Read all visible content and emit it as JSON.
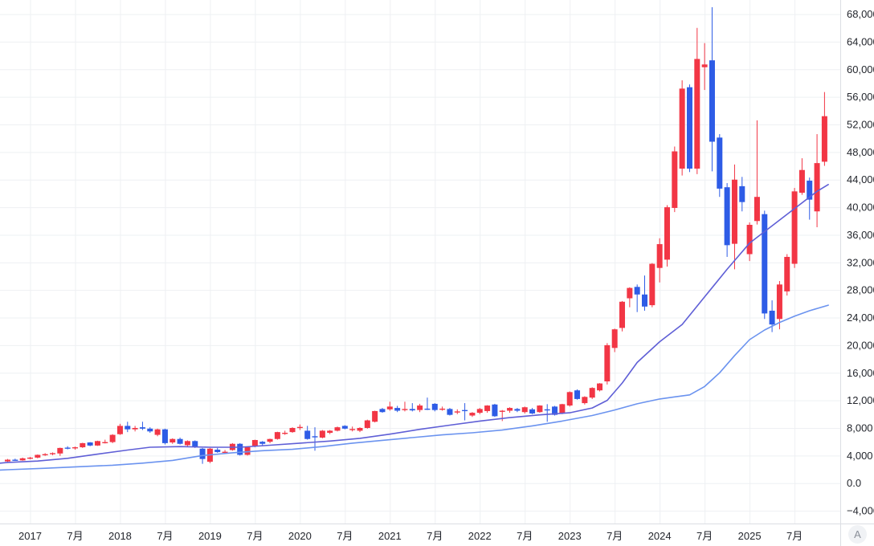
{
  "controls": {
    "axis_scale_button": "A"
  },
  "chart_data": {
    "type": "candlestick",
    "title": "",
    "frequency": "monthly",
    "start_month": "2016-10",
    "background": "#ffffff",
    "grid": true,
    "legend": "none",
    "up_color": "#f23645",
    "down_color": "#2e5ce6",
    "grid_color": "#eef0f3",
    "axis_border_color": "#dcdee3",
    "axis_text_color": "#23262d",
    "ylim": [
      -5855,
      70046
    ],
    "xlim_idx": [
      -1.02,
      111.1
    ],
    "y_ticks": [
      {
        "value": 68000,
        "label": "68,000"
      },
      {
        "value": 64000,
        "label": "64,000"
      },
      {
        "value": 60000,
        "label": "60,000"
      },
      {
        "value": 56000,
        "label": "56,000"
      },
      {
        "value": 52000,
        "label": "52,000"
      },
      {
        "value": 48000,
        "label": "48,000"
      },
      {
        "value": 44000,
        "label": "44,000"
      },
      {
        "value": 40000,
        "label": "40,000"
      },
      {
        "value": 36000,
        "label": "36,000"
      },
      {
        "value": 32000,
        "label": "32,000"
      },
      {
        "value": 28000,
        "label": "28,000"
      },
      {
        "value": 24000,
        "label": "24,000"
      },
      {
        "value": 20000,
        "label": "20,000"
      },
      {
        "value": 16000,
        "label": "16,000"
      },
      {
        "value": 12000,
        "label": "12,000"
      },
      {
        "value": 8000,
        "label": "8,000"
      },
      {
        "value": 4000,
        "label": "4,000"
      },
      {
        "value": 0,
        "label": "0.0"
      },
      {
        "value": -4000,
        "label": "−4,000"
      }
    ],
    "x_ticks": [
      {
        "idx": 3,
        "label": "2017"
      },
      {
        "idx": 9,
        "label": "7月"
      },
      {
        "idx": 15,
        "label": "2018"
      },
      {
        "idx": 21,
        "label": "7月"
      },
      {
        "idx": 27,
        "label": "2019"
      },
      {
        "idx": 33,
        "label": "7月"
      },
      {
        "idx": 39,
        "label": "2020"
      },
      {
        "idx": 45,
        "label": "7月"
      },
      {
        "idx": 51,
        "label": "2021"
      },
      {
        "idx": 57,
        "label": "7月"
      },
      {
        "idx": 63,
        "label": "2022"
      },
      {
        "idx": 69,
        "label": "7月"
      },
      {
        "idx": 75,
        "label": "2023"
      },
      {
        "idx": 81,
        "label": "7月"
      },
      {
        "idx": 87,
        "label": "2024"
      },
      {
        "idx": 93,
        "label": "7月"
      },
      {
        "idx": 99,
        "label": "2025"
      },
      {
        "idx": 105,
        "label": "7月"
      }
    ],
    "candles_ohlc": [
      [
        3150,
        3500,
        3050,
        3400
      ],
      [
        3400,
        3550,
        3250,
        3300
      ],
      [
        3300,
        3700,
        3250,
        3600
      ],
      [
        3600,
        3800,
        3450,
        3700
      ],
      [
        3700,
        4150,
        3600,
        4100
      ],
      [
        4100,
        4350,
        3950,
        4200
      ],
      [
        4200,
        4450,
        4050,
        4350
      ],
      [
        4300,
        5150,
        3950,
        5100
      ],
      [
        5150,
        5350,
        4900,
        5050
      ],
      [
        5050,
        5300,
        4850,
        5200
      ],
      [
        5200,
        5850,
        5100,
        5800
      ],
      [
        5900,
        5950,
        5350,
        5450
      ],
      [
        5450,
        6150,
        5400,
        6100
      ],
      [
        5850,
        6300,
        5750,
        5950
      ],
      [
        5950,
        7100,
        5800,
        7000
      ],
      [
        7100,
        8600,
        7000,
        8300
      ],
      [
        8300,
        8900,
        7400,
        7800
      ],
      [
        7800,
        8300,
        7500,
        8000
      ],
      [
        8100,
        8900,
        7700,
        7900
      ],
      [
        7900,
        8100,
        7300,
        7500
      ],
      [
        7000,
        7900,
        6800,
        7800
      ],
      [
        7800,
        7900,
        5600,
        5800
      ],
      [
        5900,
        6500,
        5700,
        6400
      ],
      [
        6400,
        6600,
        5600,
        5700
      ],
      [
        5500,
        6200,
        5300,
        6100
      ],
      [
        6100,
        6200,
        5100,
        5200
      ],
      [
        5000,
        5100,
        2800,
        3500
      ],
      [
        3100,
        5100,
        2900,
        5000
      ],
      [
        4850,
        5100,
        4400,
        4500
      ],
      [
        4500,
        4800,
        4300,
        4550
      ],
      [
        4800,
        5800,
        4700,
        5700
      ],
      [
        5700,
        5800,
        4000,
        4100
      ],
      [
        4100,
        5300,
        4000,
        5200
      ],
      [
        5400,
        6300,
        5200,
        6250
      ],
      [
        6000,
        6100,
        5500,
        5700
      ],
      [
        6000,
        6450,
        5800,
        6400
      ],
      [
        6400,
        7450,
        6300,
        7400
      ],
      [
        7200,
        7600,
        7000,
        7300
      ],
      [
        7400,
        8100,
        7300,
        8000
      ],
      [
        8100,
        8500,
        7700,
        8150
      ],
      [
        7600,
        8300,
        6300,
        6400
      ],
      [
        6800,
        8100,
        4700,
        6750
      ],
      [
        6600,
        7700,
        6500,
        7600
      ],
      [
        7300,
        7700,
        7100,
        7600
      ],
      [
        7600,
        8200,
        7500,
        8100
      ],
      [
        8300,
        8400,
        7800,
        7900
      ],
      [
        7800,
        8200,
        7500,
        7850
      ],
      [
        7600,
        8100,
        7400,
        8000
      ],
      [
        8000,
        9200,
        7900,
        9100
      ],
      [
        8900,
        10500,
        8800,
        10450
      ],
      [
        10750,
        10900,
        10200,
        10300
      ],
      [
        10700,
        11800,
        10500,
        11100
      ],
      [
        10900,
        11200,
        10300,
        10500
      ],
      [
        10700,
        11800,
        10400,
        10750
      ],
      [
        10750,
        11600,
        10400,
        10550
      ],
      [
        10600,
        11500,
        10300,
        11250
      ],
      [
        10800,
        12400,
        10600,
        10700
      ],
      [
        11500,
        11600,
        10400,
        10600
      ],
      [
        10750,
        11100,
        10500,
        10800
      ],
      [
        10750,
        10900,
        9800,
        9900
      ],
      [
        10350,
        10700,
        10000,
        10400
      ],
      [
        10600,
        11600,
        9100,
        10550
      ],
      [
        9800,
        10300,
        9600,
        10200
      ],
      [
        10200,
        10900,
        10000,
        10750
      ],
      [
        10450,
        11300,
        10200,
        11250
      ],
      [
        11400,
        11500,
        9600,
        9700
      ],
      [
        10450,
        10600,
        9000,
        10500
      ],
      [
        10500,
        11000,
        10200,
        10900
      ],
      [
        10750,
        10900,
        10300,
        10500
      ],
      [
        10300,
        11100,
        10100,
        11000
      ],
      [
        10700,
        10900,
        10000,
        10100
      ],
      [
        10300,
        11300,
        10200,
        11250
      ],
      [
        10700,
        11450,
        8900,
        10600
      ],
      [
        11100,
        11200,
        9800,
        9900
      ],
      [
        10100,
        11500,
        10000,
        11450
      ],
      [
        11250,
        13300,
        11100,
        13200
      ],
      [
        13450,
        13600,
        12100,
        12200
      ],
      [
        11600,
        12600,
        11400,
        12500
      ],
      [
        12400,
        13900,
        12200,
        13800
      ],
      [
        13450,
        14500,
        13300,
        14450
      ],
      [
        14750,
        20300,
        14300,
        20000
      ],
      [
        19600,
        22400,
        19000,
        22300
      ],
      [
        22500,
        26400,
        22000,
        26300
      ],
      [
        26800,
        28400,
        25500,
        28300
      ],
      [
        28450,
        28800,
        24800,
        27350
      ],
      [
        27350,
        30100,
        25000,
        25600
      ],
      [
        25800,
        31900,
        25500,
        31800
      ],
      [
        31200,
        35500,
        29100,
        34650
      ],
      [
        32400,
        40300,
        31400,
        40000
      ],
      [
        39900,
        48800,
        39300,
        48100
      ],
      [
        45600,
        58400,
        44600,
        57200
      ],
      [
        57400,
        57800,
        45100,
        45600
      ],
      [
        45600,
        66000,
        44800,
        61500
      ],
      [
        60300,
        63800,
        57000,
        60700
      ],
      [
        61300,
        69000,
        45200,
        49500
      ],
      [
        50100,
        50600,
        41500,
        42700
      ],
      [
        42900,
        43500,
        32800,
        34500
      ],
      [
        34700,
        46200,
        31000,
        44000
      ],
      [
        43050,
        44400,
        39400,
        40750
      ],
      [
        33200,
        37800,
        32200,
        37450
      ],
      [
        38000,
        52600,
        37500,
        41500
      ],
      [
        39000,
        39500,
        23800,
        24600
      ],
      [
        25000,
        26500,
        21900,
        23000
      ],
      [
        23800,
        29300,
        22300,
        28800
      ],
      [
        27800,
        33200,
        27200,
        32800
      ],
      [
        31800,
        42800,
        31200,
        42300
      ],
      [
        42100,
        47100,
        41800,
        45400
      ],
      [
        43850,
        44300,
        38200,
        41100
      ],
      [
        39400,
        50600,
        37100,
        46400
      ],
      [
        46600,
        56700,
        46000,
        53200
      ]
    ],
    "moving_averages": [
      {
        "name": "ma-fast",
        "color": "#5f5fd6",
        "anchors": [
          [
            -1,
            2900
          ],
          [
            0,
            3000
          ],
          [
            4,
            3200
          ],
          [
            8,
            3600
          ],
          [
            12,
            4200
          ],
          [
            16,
            4800
          ],
          [
            19,
            5200
          ],
          [
            23,
            5300
          ],
          [
            27,
            5200
          ],
          [
            31,
            5200
          ],
          [
            35,
            5500
          ],
          [
            39,
            5800
          ],
          [
            43,
            6100
          ],
          [
            47,
            6500
          ],
          [
            51,
            7100
          ],
          [
            55,
            7800
          ],
          [
            59,
            8400
          ],
          [
            63,
            9000
          ],
          [
            67,
            9500
          ],
          [
            71,
            9900
          ],
          [
            75,
            10200
          ],
          [
            78,
            10900
          ],
          [
            80,
            12000
          ],
          [
            82,
            14500
          ],
          [
            84,
            17500
          ],
          [
            87,
            20500
          ],
          [
            90,
            23000
          ],
          [
            93,
            27000
          ],
          [
            96,
            31000
          ],
          [
            99,
            34800
          ],
          [
            102,
            37300
          ],
          [
            105,
            39800
          ],
          [
            108,
            42300
          ],
          [
            109.5,
            43300
          ]
        ]
      },
      {
        "name": "ma-slow",
        "color": "#6b93ef",
        "anchors": [
          [
            -1,
            1900
          ],
          [
            0,
            1950
          ],
          [
            5,
            2150
          ],
          [
            10,
            2400
          ],
          [
            14,
            2600
          ],
          [
            18,
            2900
          ],
          [
            22,
            3300
          ],
          [
            26,
            4000
          ],
          [
            30,
            4400
          ],
          [
            34,
            4700
          ],
          [
            38,
            4900
          ],
          [
            42,
            5300
          ],
          [
            46,
            5800
          ],
          [
            50,
            6200
          ],
          [
            54,
            6600
          ],
          [
            58,
            7000
          ],
          [
            62,
            7300
          ],
          [
            66,
            7700
          ],
          [
            70,
            8300
          ],
          [
            74,
            9000
          ],
          [
            78,
            9800
          ],
          [
            81,
            10600
          ],
          [
            84,
            11500
          ],
          [
            87,
            12200
          ],
          [
            89,
            12500
          ],
          [
            91,
            12800
          ],
          [
            93,
            14000
          ],
          [
            95,
            16000
          ],
          [
            97,
            18500
          ],
          [
            99,
            20800
          ],
          [
            101,
            22200
          ],
          [
            103,
            23300
          ],
          [
            105,
            24200
          ],
          [
            107,
            25000
          ],
          [
            109.5,
            25800
          ]
        ]
      }
    ]
  }
}
